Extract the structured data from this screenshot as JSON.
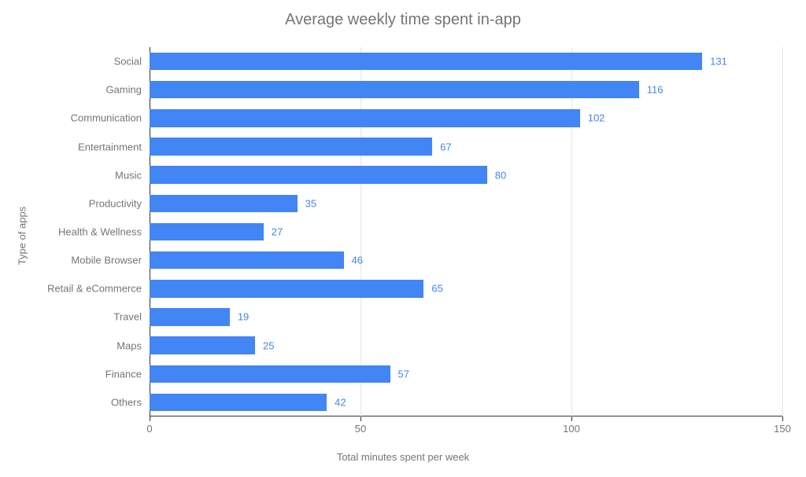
{
  "chart": {
    "type": "bar-horizontal",
    "title": "Average weekly time spent in-app",
    "title_fontsize": 20,
    "title_color": "#757575",
    "x_axis_title": "Total minutes spent per week",
    "y_axis_title": "Type of apps",
    "axis_title_fontsize": 13,
    "axis_title_color": "#757575",
    "tick_label_fontsize": 13,
    "tick_label_color": "#757575",
    "value_label_fontsize": 13,
    "value_label_color": "#4285f4",
    "bar_color": "#4285f4",
    "background_color": "#ffffff",
    "grid_color": "#e6e6e6",
    "axis_line_color": "#333333",
    "xlim": [
      0,
      150
    ],
    "x_ticks": [
      0,
      50,
      100,
      150
    ],
    "bar_width_ratio": 0.62,
    "categories": [
      "Social",
      "Gaming",
      "Communication",
      "Entertainment",
      "Music",
      "Productivity",
      "Health & Wellness",
      "Mobile Browser",
      "Retail & eCommerce",
      "Travel",
      "Maps",
      "Finance",
      "Others"
    ],
    "values": [
      131,
      116,
      102,
      67,
      80,
      35,
      27,
      46,
      65,
      19,
      25,
      57,
      42
    ]
  }
}
